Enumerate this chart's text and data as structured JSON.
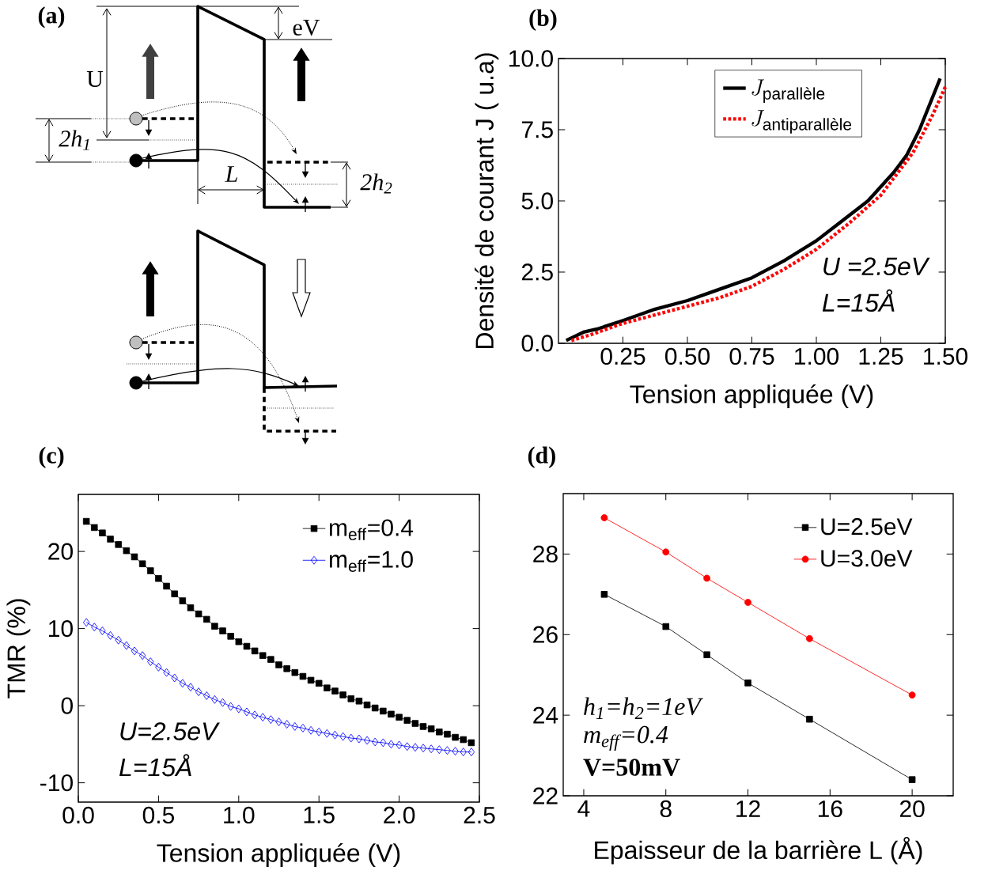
{
  "chart_data": [
    {
      "type": "other",
      "title": "(a)",
      "annotations": [
        "U",
        "eV",
        "2h$_{1}$",
        "L",
        "2h$_{2}$"
      ]
    },
    {
      "type": "line",
      "title": "(b)",
      "xlabel": "Tension appliquée (V)",
      "ylabel": "Densité de courant J (   u.a)",
      "xlim": [
        0,
        1.5
      ],
      "ylim": [
        0,
        10
      ],
      "xticks": [
        {
          "value": 0.25,
          "label": "0.25"
        },
        {
          "value": 0.5,
          "label": "0.50"
        },
        {
          "value": 0.75,
          "label": "0.75"
        },
        {
          "value": 1.0,
          "label": "1.00"
        },
        {
          "value": 1.25,
          "label": "1.25"
        },
        {
          "value": 1.5,
          "label": "1.50"
        }
      ],
      "yticks": [
        {
          "value": 0,
          "label": "0.0"
        },
        {
          "value": 2.5,
          "label": "2.5"
        },
        {
          "value": 5,
          "label": "5.0"
        },
        {
          "value": 7.5,
          "label": "7.5"
        },
        {
          "value": 10,
          "label": "10.0"
        }
      ],
      "legend": "top right",
      "annotations": [
        "U =2.5eV",
        "L=15Å"
      ],
      "series": [
        {
          "name": "J_{\\text{parallèle}}",
          "color": "#000000",
          "marker": "none",
          "line_style": "solid",
          "x": [
            0.03,
            0.1,
            0.15,
            0.25,
            0.375,
            0.5,
            0.625,
            0.75,
            0.875,
            1.0,
            1.1,
            1.2,
            1.25,
            1.3,
            1.35,
            1.4,
            1.48
          ],
          "values": [
            0.1,
            0.4,
            0.5,
            0.8,
            1.2,
            1.5,
            1.9,
            2.3,
            2.9,
            3.6,
            4.3,
            5.0,
            5.5,
            6.0,
            6.6,
            7.5,
            9.3
          ]
        },
        {
          "name": "J_{\\text{antiparallèle}}",
          "color": "#ff0000",
          "marker": "none",
          "line_style": "dotted",
          "x": [
            0.05,
            0.125,
            0.25,
            0.375,
            0.5,
            0.625,
            0.75,
            0.875,
            1.0,
            1.125,
            1.25,
            1.375,
            1.45,
            1.5
          ],
          "values": [
            0.1,
            0.3,
            0.7,
            1.0,
            1.3,
            1.6,
            2.0,
            2.6,
            3.3,
            4.2,
            5.2,
            6.7,
            8.0,
            9.0
          ]
        }
      ]
    },
    {
      "type": "line",
      "title": "(c)",
      "xlabel": "Tension appliquée (V)",
      "ylabel": "TMR (%)",
      "xlim": [
        0,
        2.5
      ],
      "ylim": [
        -12.5,
        27.4
      ],
      "xticks": [
        {
          "value": 0,
          "label": "0.0"
        },
        {
          "value": 0.5,
          "label": "0.5"
        },
        {
          "value": 1.0,
          "label": "1.0"
        },
        {
          "value": 1.5,
          "label": "1.5"
        },
        {
          "value": 2.0,
          "label": "2.0"
        },
        {
          "value": 2.5,
          "label": "2.5"
        }
      ],
      "yticks": [
        -10,
        0,
        10,
        20
      ],
      "legend": "top right",
      "annotations": [
        "U=2.5eV",
        "L=15Å"
      ],
      "x": [
        0.05,
        0.1,
        0.15,
        0.2,
        0.25,
        0.3,
        0.35,
        0.4,
        0.45,
        0.5,
        0.55,
        0.6,
        0.65,
        0.7,
        0.75,
        0.8,
        0.85,
        0.9,
        0.95,
        1.0,
        1.05,
        1.1,
        1.15,
        1.2,
        1.25,
        1.3,
        1.35,
        1.4,
        1.45,
        1.5,
        1.55,
        1.6,
        1.65,
        1.7,
        1.75,
        1.8,
        1.85,
        1.9,
        1.95,
        2.0,
        2.05,
        2.1,
        2.15,
        2.2,
        2.25,
        2.3,
        2.35,
        2.4,
        2.45
      ],
      "series": [
        {
          "name": "m$_{eff}$=0.4",
          "color": "#000000",
          "marker": "square",
          "line_style": "solid",
          "values": [
            23.9,
            23.1,
            22.4,
            21.6,
            20.9,
            20.1,
            19.3,
            18.4,
            17.5,
            16.5,
            15.5,
            14.5,
            13.6,
            12.7,
            11.9,
            11.2,
            10.3,
            9.7,
            9.0,
            8.3,
            7.7,
            7.1,
            6.5,
            6.0,
            5.3,
            4.8,
            4.3,
            3.8,
            3.3,
            2.9,
            2.3,
            1.9,
            1.4,
            0.9,
            0.6,
            0.1,
            -0.3,
            -0.7,
            -1.1,
            -1.5,
            -1.9,
            -2.3,
            -2.7,
            -3.0,
            -3.4,
            -3.7,
            -4.1,
            -4.4,
            -4.8
          ]
        },
        {
          "name": "m$_{eff}$=1.0",
          "color": "#0000ff",
          "marker": "diamond",
          "line_style": "solid",
          "values": [
            10.8,
            10.2,
            9.7,
            9.1,
            8.5,
            7.8,
            7.1,
            6.5,
            5.7,
            5.0,
            4.3,
            3.6,
            2.9,
            2.4,
            1.8,
            1.3,
            0.8,
            0.4,
            -0.1,
            -0.4,
            -0.8,
            -1.2,
            -1.5,
            -1.8,
            -2.1,
            -2.4,
            -2.7,
            -2.9,
            -3.2,
            -3.4,
            -3.6,
            -3.8,
            -4.0,
            -4.2,
            -4.3,
            -4.5,
            -4.7,
            -4.8,
            -5.0,
            -5.1,
            -5.3,
            -5.4,
            -5.5,
            -5.6,
            -5.7,
            -5.8,
            -5.9,
            -6.0,
            -6.0
          ]
        }
      ]
    },
    {
      "type": "line",
      "title": "(d)",
      "xlabel": "Epaisseur de la barrière L (Å)",
      "xlim": [
        3,
        22
      ],
      "ylim": [
        22,
        29.5
      ],
      "xticks": [
        4,
        8,
        12,
        16,
        20
      ],
      "yticks": [
        22,
        24,
        26,
        28
      ],
      "legend": "top right",
      "annotations": [
        "h$_{1}$=h$_{2}$=1eV",
        "m$_{eff}$=0.4",
        "V=50mV"
      ],
      "x": [
        5,
        8,
        10,
        12,
        15,
        20
      ],
      "series": [
        {
          "name": "U=2.5eV",
          "color": "#000000",
          "marker": "square",
          "line_style": "solid",
          "values": [
            27.0,
            26.2,
            25.5,
            24.8,
            23.9,
            22.4
          ]
        },
        {
          "name": "U=3.0eV",
          "color": "#ff0000",
          "marker": "circle",
          "line_style": "solid",
          "values": [
            28.9,
            28.05,
            27.4,
            26.8,
            25.9,
            24.5
          ]
        }
      ]
    }
  ]
}
